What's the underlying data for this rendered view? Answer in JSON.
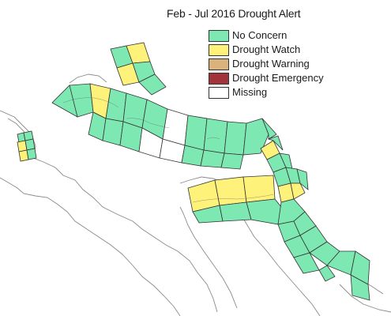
{
  "title": "Feb - Jul 2016 Drought Alert",
  "legend": [
    {
      "label": "No Concern",
      "color": "#7ee8b2"
    },
    {
      "label": "Drought Watch",
      "color": "#fff27a"
    },
    {
      "label": "Drought Warning",
      "color": "#d9b27c"
    },
    {
      "label": "Drought Emergency",
      "color": "#a3333a"
    },
    {
      "label": "Missing",
      "color": "#ffffff"
    }
  ],
  "colors": {
    "no_concern": "#7ee8b2",
    "watch": "#fff27a",
    "outline": "#333333",
    "coast": "#8a8a8a"
  }
}
